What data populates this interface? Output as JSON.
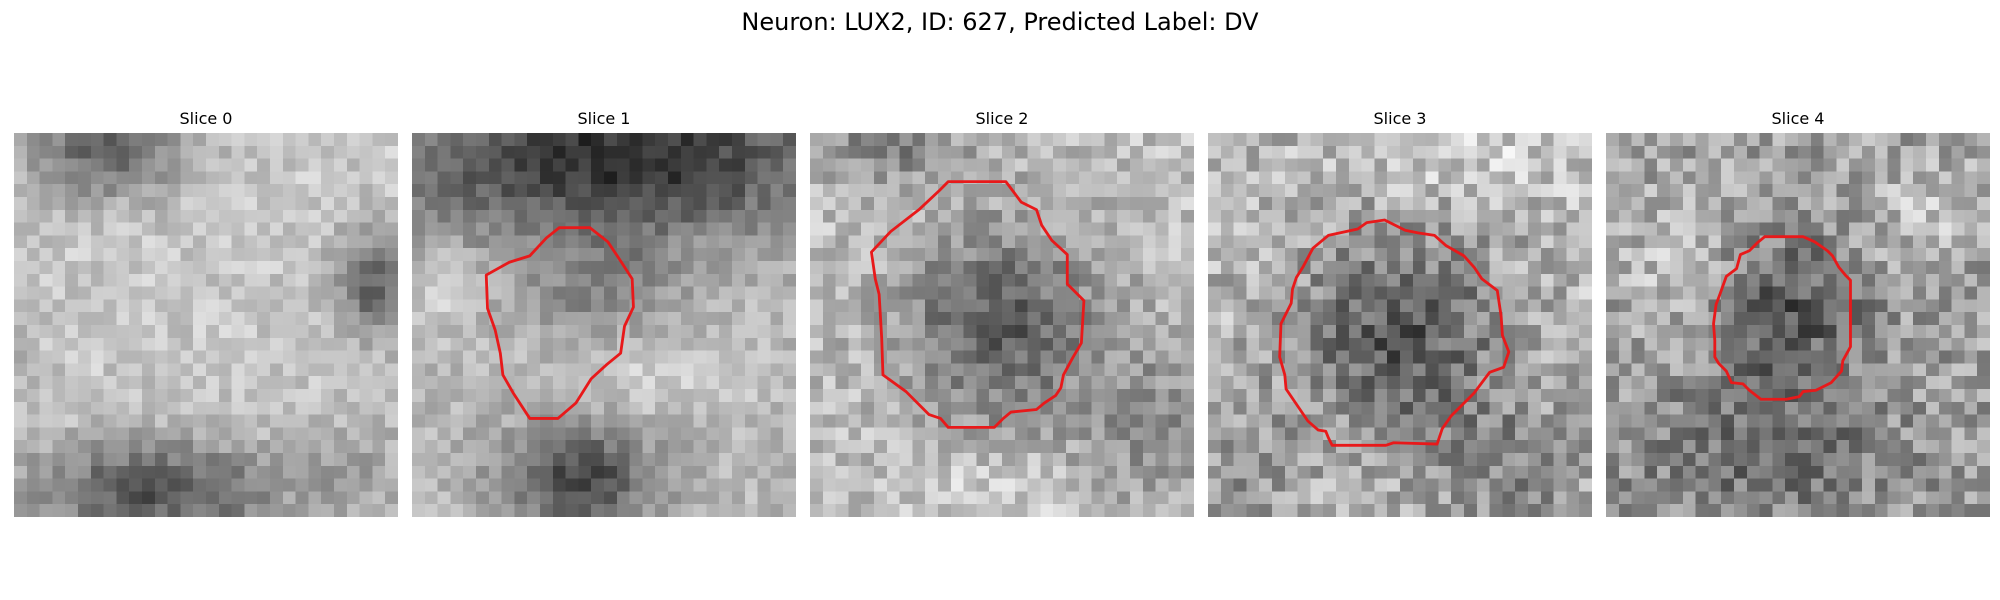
{
  "figure": {
    "title": "Neuron: LUX2, ID: 627, Predicted Label: DV",
    "contour_color": "#e8191a"
  },
  "panels": [
    {
      "title": "Slice 0",
      "has_contour": false
    },
    {
      "title": "Slice 1",
      "has_contour": true
    },
    {
      "title": "Slice 2",
      "has_contour": true
    },
    {
      "title": "Slice 3",
      "has_contour": true
    },
    {
      "title": "Slice 4",
      "has_contour": true
    }
  ]
}
